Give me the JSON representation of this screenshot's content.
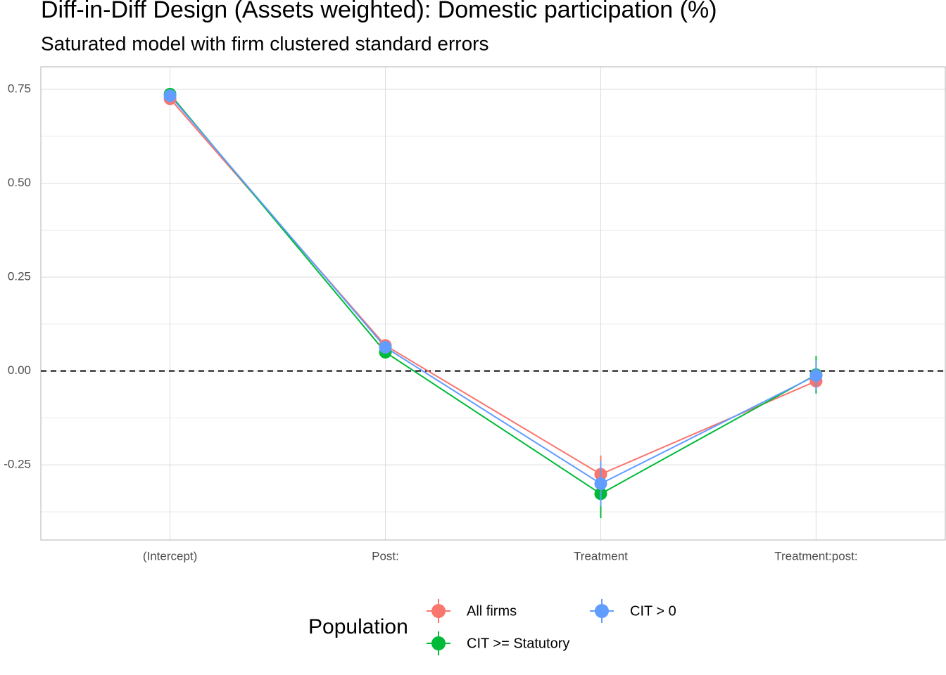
{
  "chart_data": {
    "type": "line",
    "title": "Diff-in-Diff Design (Assets weighted): Domestic participation (%)",
    "subtitle": "Saturated model with firm clustered standard errors",
    "categories": [
      "(Intercept)",
      "Post:",
      "Treatment",
      "Treatment:post:"
    ],
    "series": [
      {
        "name": "All firms",
        "color": "#F8766D",
        "values": [
          0.725,
          0.068,
          -0.275,
          -0.027
        ],
        "errors": [
          0.01,
          0.01,
          0.05,
          0.03
        ]
      },
      {
        "name": "CIT >= Statutory",
        "color": "#00BA38",
        "values": [
          0.737,
          0.05,
          -0.327,
          -0.01
        ],
        "errors": [
          0.01,
          0.01,
          0.065,
          0.05
        ]
      },
      {
        "name": "CIT > 0",
        "color": "#619CFF",
        "values": [
          0.733,
          0.063,
          -0.3,
          -0.012
        ],
        "errors": [
          0.01,
          0.01,
          0.06,
          0.04
        ]
      }
    ],
    "ylim": [
      -0.45,
      0.81
    ],
    "yticks": [
      {
        "value": -0.25,
        "label": "-0.25"
      },
      {
        "value": 0,
        "label": "0.00"
      },
      {
        "value": 0.25,
        "label": "0.25"
      },
      {
        "value": 0.5,
        "label": "0.50"
      },
      {
        "value": 0.75,
        "label": "0.75"
      }
    ],
    "yminor": [
      -0.375,
      -0.125,
      0.125,
      0.375,
      0.625
    ],
    "hline": 0,
    "grid": true,
    "legend_title": "Population",
    "legend_position": "bottom"
  }
}
